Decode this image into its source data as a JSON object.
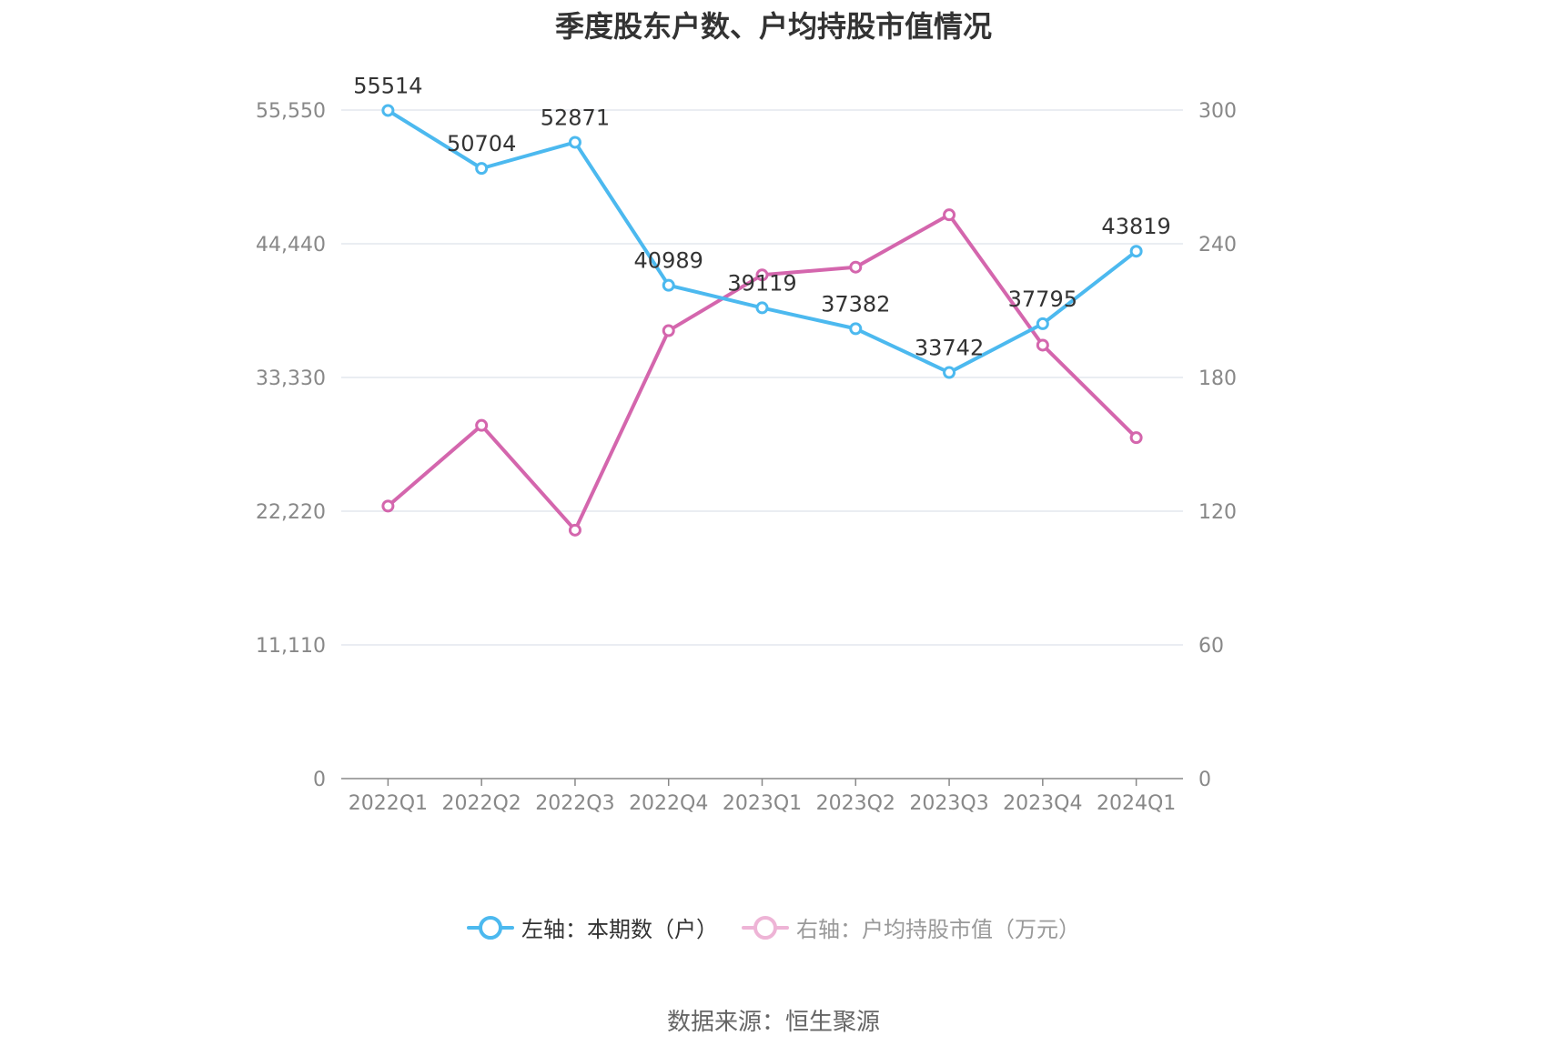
{
  "page": {
    "title": "季度股东户数、户均持股市值情况",
    "source": "数据来源：恒生聚源"
  },
  "colors": {
    "left_series": "#4cb9ef",
    "right_series": "#d466ad",
    "right_series_legend": "#eeb4d6",
    "grid": "#e3e7ee",
    "axis": "#888888"
  },
  "chart_data": {
    "type": "line",
    "categories": [
      "2022Q1",
      "2022Q2",
      "2022Q3",
      "2022Q4",
      "2023Q1",
      "2023Q2",
      "2023Q3",
      "2023Q4",
      "2024Q1"
    ],
    "y_left": {
      "ticks": [
        "0",
        "11,110",
        "22,220",
        "33,330",
        "44,440",
        "55,550"
      ],
      "range": [
        0,
        55550
      ]
    },
    "y_right": {
      "ticks": [
        "0",
        "60",
        "120",
        "180",
        "240",
        "300"
      ],
      "range": [
        0,
        300
      ]
    },
    "grid": true,
    "legend_position": "bottom",
    "series": [
      {
        "name": "左轴：本期数（户）",
        "axis": "left",
        "values": [
          55514,
          50704,
          52871,
          40989,
          39119,
          37382,
          33742,
          37795,
          43819
        ],
        "labels": [
          "55514",
          "50704",
          "52871",
          "40989",
          "39119",
          "37382",
          "33742",
          "37795",
          "43819"
        ]
      },
      {
        "name": "右轴：户均持股市值（万元）",
        "axis": "right",
        "values": [
          122.3,
          158.5,
          111.5,
          201.0,
          226.0,
          229.5,
          253.0,
          194.5,
          153.0
        ]
      }
    ]
  }
}
